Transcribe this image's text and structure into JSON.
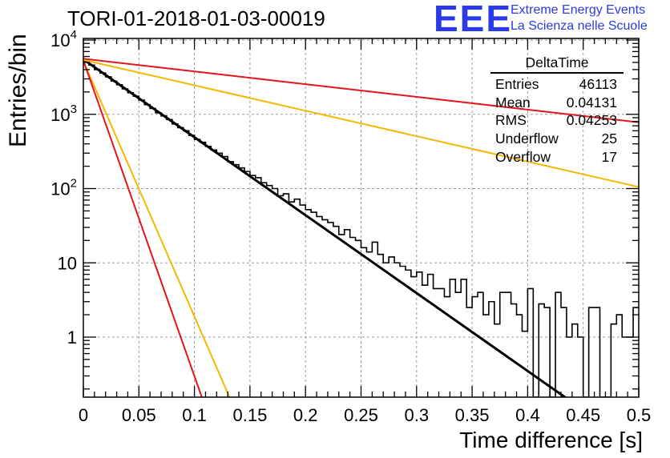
{
  "title": "TORI-01-2018-01-03-00019",
  "logo": {
    "mark": "EEE",
    "line1": "Extreme Energy Events",
    "line2": "La Scienza nelle Scuole",
    "color": "#2a3ae6"
  },
  "stats": {
    "name": "DeltaTime",
    "rows": [
      {
        "label": "Entries",
        "value": "46113"
      },
      {
        "label": "Mean",
        "value": "0.04131"
      },
      {
        "label": "RMS",
        "value": "0.04253"
      },
      {
        "label": "Underflow",
        "value": "25"
      },
      {
        "label": "Overflow",
        "value": "17"
      }
    ]
  },
  "chart_data": {
    "type": "line",
    "xlabel": "Time difference [s]",
    "ylabel": "Entries/bin",
    "xlim": [
      0,
      0.5
    ],
    "ylim": [
      0.15,
      10000
    ],
    "yscale": "log",
    "grid": true,
    "x_ticks": [
      "0",
      "0.05",
      "0.1",
      "0.15",
      "0.2",
      "0.25",
      "0.3",
      "0.35",
      "0.4",
      "0.45",
      "0.5"
    ],
    "y_ticks": [
      "1",
      "10",
      "10^2",
      "10^3",
      "10^4"
    ],
    "histogram": {
      "bin_width": 0.005,
      "color": "#000000",
      "counts": [
        5200,
        4600,
        4000,
        3600,
        3200,
        2800,
        2500,
        2200,
        1950,
        1750,
        1550,
        1350,
        1200,
        1050,
        950,
        850,
        740,
        660,
        600,
        520,
        460,
        420,
        370,
        330,
        300,
        270,
        230,
        210,
        190,
        170,
        150,
        140,
        120,
        110,
        100,
        80,
        85,
        66,
        72,
        60,
        52,
        48,
        42,
        38,
        35,
        31,
        24,
        28,
        22,
        20,
        16,
        14,
        19,
        13,
        10,
        12,
        10,
        9,
        8,
        6.5,
        7.5,
        5,
        7,
        4.5,
        4.5,
        3.5,
        6,
        4,
        6,
        2.5,
        3.5,
        4,
        2,
        3,
        1.5,
        4,
        4,
        2.8,
        2,
        1.2,
        4.5,
        0.1,
        2.8,
        2.5,
        0.1,
        4,
        2.5,
        1,
        1.5,
        1,
        0.1,
        2.5,
        2.5,
        0.1,
        0.1,
        1.5,
        2,
        1,
        1,
        2.5
      ]
    },
    "fits": [
      {
        "name": "black",
        "color": "#000000",
        "from": [
          0,
          5500
        ],
        "to": [
          0.435,
          0.15
        ]
      },
      {
        "name": "red-slow",
        "color": "#e3141c",
        "from": [
          0,
          5600
        ],
        "to": [
          0.5,
          780
        ]
      },
      {
        "name": "orange-slow",
        "color": "#f5b800",
        "from": [
          0,
          5400
        ],
        "to": [
          0.5,
          105
        ]
      },
      {
        "name": "orange-fast",
        "color": "#f5b800",
        "from": [
          0,
          5200
        ],
        "to": [
          0.132,
          0.15
        ]
      },
      {
        "name": "red-fast",
        "color": "#e3141c",
        "from": [
          0,
          5300
        ],
        "to": [
          0.107,
          0.15
        ]
      }
    ]
  }
}
